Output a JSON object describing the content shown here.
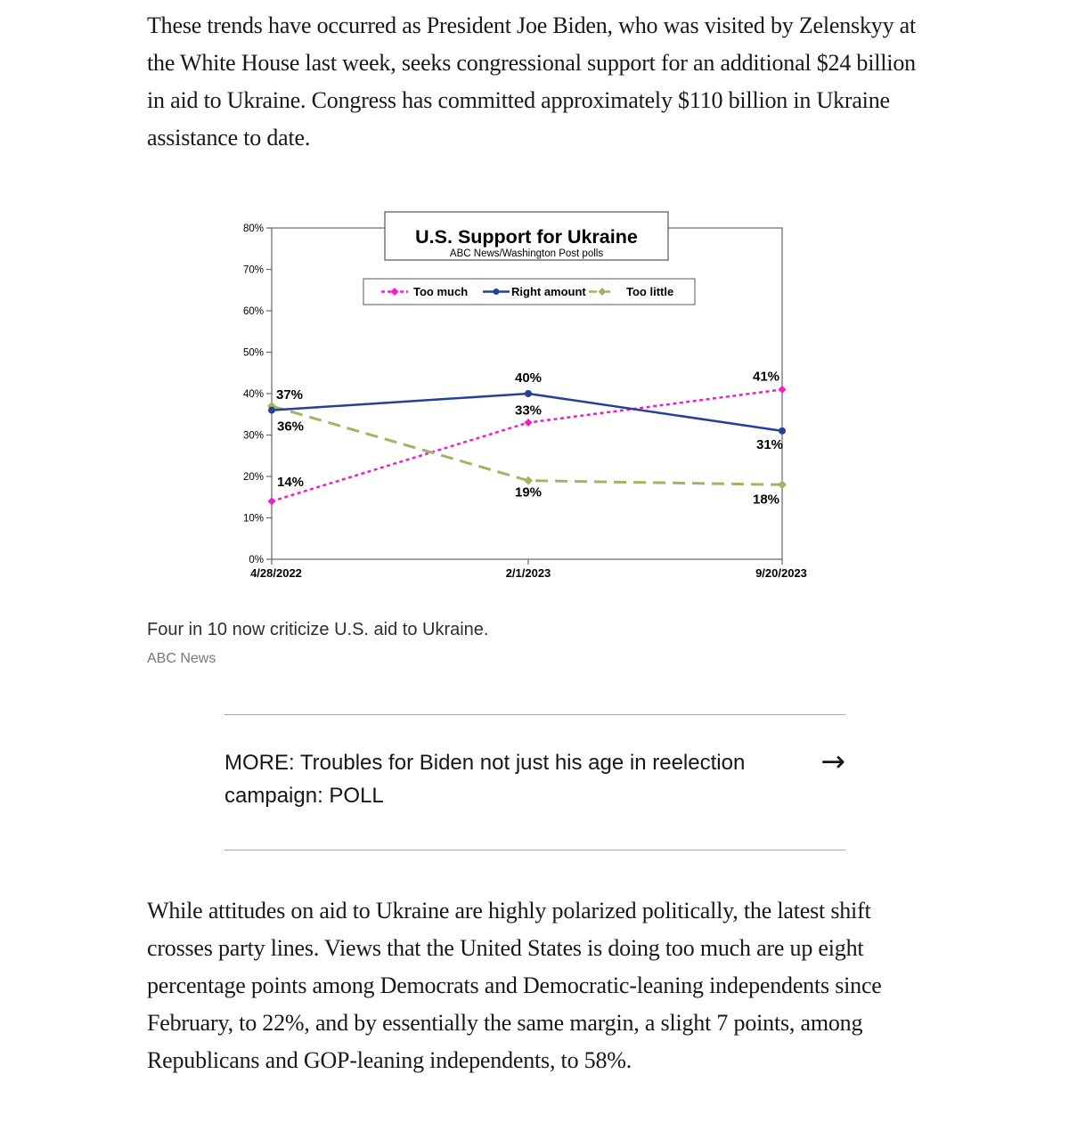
{
  "article": {
    "paragraph_top": "These trends have occurred as President Joe Biden, who was visited by Zelenskyy at the White House last week, seeks congressional support for an additional $24 billion in aid to Ukraine. Congress has committed approximately $110 billion in Ukraine assistance to date.",
    "figure_caption": "Four in 10 now criticize U.S. aid to Ukraine.",
    "figure_credit": "ABC News",
    "more_link": {
      "text": "MORE: Troubles for Biden not just his age in reelection campaign: POLL",
      "arrow_glyph": "→"
    },
    "paragraph_bottom": "While attitudes on aid to Ukraine are highly polarized politically, the latest shift crosses party lines. Views that the United States is doing too much are up eight percentage points among Democrats and Democratic-leaning independents since February, to 22%, and by essentially the same margin, a slight 7 points, among Republicans and GOP-leaning independents, to 58%."
  },
  "chart_data": {
    "type": "line",
    "title": "U.S. Support for Ukraine",
    "subtitle": "ABC News/Washington Post polls",
    "categories": [
      "4/28/2022",
      "2/1/2023",
      "9/20/2023"
    ],
    "ylim": [
      0,
      80
    ],
    "ytick_step": 10,
    "ytick_labels": [
      "0%",
      "10%",
      "20%",
      "30%",
      "40%",
      "50%",
      "60%",
      "70%",
      "80%"
    ],
    "grid": false,
    "legend_position": "top-inside",
    "axis_color": "#666666",
    "text_color": "#000000",
    "series": [
      {
        "name": "Too much",
        "color": "#F01EC4",
        "style": "dashed",
        "marker": "diamond",
        "values": [
          14,
          33,
          41
        ],
        "point_labels": [
          "14%",
          "33%",
          "41%"
        ]
      },
      {
        "name": "Right amount",
        "color": "#24409B",
        "style": "solid",
        "marker": "circle",
        "values": [
          36,
          40,
          31
        ],
        "point_labels": [
          "36%",
          "40%",
          "31%"
        ]
      },
      {
        "name": "Too little",
        "color": "#A2B464",
        "style": "long-dash",
        "marker": "diamond",
        "values": [
          37,
          19,
          18
        ],
        "point_labels": [
          "37%",
          "19%",
          "18%"
        ]
      }
    ]
  }
}
